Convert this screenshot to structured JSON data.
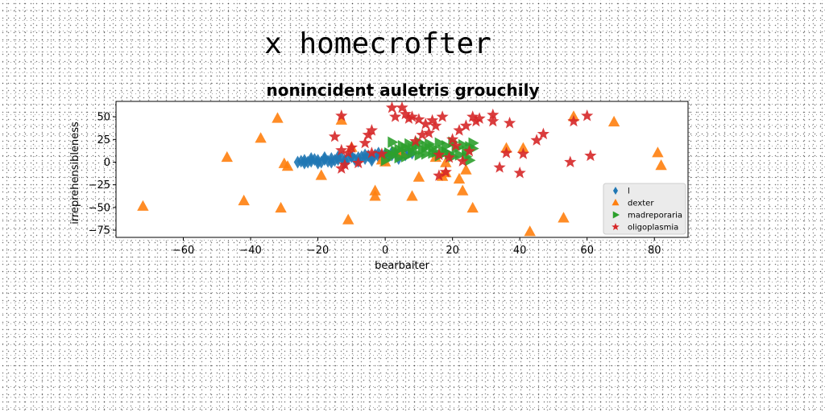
{
  "page": {
    "suptitle": "x homecrofter"
  },
  "chart_data": {
    "type": "scatter",
    "title": "nonincident auletris grouchily",
    "xlabel": "bearbaiter",
    "ylabel": "irreprehensibleness",
    "xlim": [
      -80,
      90
    ],
    "ylim": [
      -83,
      67
    ],
    "xticks": [
      -60,
      -40,
      -20,
      0,
      20,
      40,
      60,
      80
    ],
    "yticks": [
      50,
      25,
      0,
      -25,
      -50,
      -75
    ],
    "grid": false,
    "legend_position": "lower right",
    "series": [
      {
        "name": "l",
        "marker": "diamond",
        "color": "#1f77b4",
        "points": [
          [
            -26,
            0
          ],
          [
            -25,
            1
          ],
          [
            -24,
            2
          ],
          [
            -23,
            0
          ],
          [
            -22,
            1
          ],
          [
            -21,
            3
          ],
          [
            -20,
            2
          ],
          [
            -19,
            0
          ],
          [
            -18,
            3
          ],
          [
            -17,
            1
          ],
          [
            -16,
            4
          ],
          [
            -15,
            2
          ],
          [
            -14,
            3
          ],
          [
            -13,
            5
          ],
          [
            -12,
            2
          ],
          [
            -11,
            4
          ],
          [
            -10,
            6
          ],
          [
            -9,
            3
          ],
          [
            -8,
            5
          ],
          [
            -7,
            6
          ],
          [
            -6,
            4
          ],
          [
            -5,
            7
          ],
          [
            -4,
            5
          ],
          [
            -3,
            8
          ],
          [
            -2,
            6
          ],
          [
            -1,
            7
          ],
          [
            0,
            9
          ],
          [
            1,
            7
          ],
          [
            2,
            8
          ],
          [
            3,
            10
          ],
          [
            4,
            9
          ],
          [
            5,
            11
          ],
          [
            6,
            8
          ],
          [
            7,
            12
          ],
          [
            8,
            10
          ],
          [
            -24,
            -1
          ],
          [
            -20,
            -1
          ],
          [
            -16,
            0
          ],
          [
            -12,
            0
          ],
          [
            -8,
            1
          ],
          [
            -4,
            2
          ],
          [
            0,
            3
          ],
          [
            4,
            4
          ],
          [
            -22,
            4
          ],
          [
            -18,
            5
          ],
          [
            -14,
            6
          ],
          [
            -10,
            7
          ],
          [
            -6,
            8
          ],
          [
            -2,
            10
          ],
          [
            2,
            11
          ]
        ]
      },
      {
        "name": "dexter",
        "marker": "triangle-up",
        "color": "#ff7f0e",
        "points": [
          [
            -72,
            -49
          ],
          [
            -47,
            5
          ],
          [
            -42,
            -43
          ],
          [
            -37,
            26
          ],
          [
            -32,
            48
          ],
          [
            -31,
            -51
          ],
          [
            -30,
            -2
          ],
          [
            -29,
            -5
          ],
          [
            -19,
            -15
          ],
          [
            -13,
            46
          ],
          [
            -11,
            -64
          ],
          [
            -10,
            16
          ],
          [
            -3,
            -32
          ],
          [
            -3,
            -38
          ],
          [
            -1,
            2
          ],
          [
            8,
            -38
          ],
          [
            10,
            -17
          ],
          [
            17,
            -16
          ],
          [
            18,
            -12
          ],
          [
            18,
            -1
          ],
          [
            22,
            -19
          ],
          [
            23,
            -32
          ],
          [
            24,
            -9
          ],
          [
            26,
            -51
          ],
          [
            36,
            15
          ],
          [
            41,
            15
          ],
          [
            43,
            -77
          ],
          [
            53,
            -62
          ],
          [
            56,
            50
          ],
          [
            68,
            44
          ],
          [
            81,
            10
          ],
          [
            82,
            -4
          ],
          [
            0,
            0
          ],
          [
            5,
            10
          ],
          [
            15,
            5
          ]
        ]
      },
      {
        "name": "madreporaria",
        "marker": "triangle-right",
        "color": "#2ca02c",
        "points": [
          [
            0,
            2
          ],
          [
            1,
            10
          ],
          [
            2,
            22
          ],
          [
            3,
            12
          ],
          [
            4,
            5
          ],
          [
            5,
            18
          ],
          [
            6,
            15
          ],
          [
            7,
            20
          ],
          [
            8,
            10
          ],
          [
            9,
            18
          ],
          [
            10,
            22
          ],
          [
            11,
            14
          ],
          [
            12,
            9
          ],
          [
            13,
            20
          ],
          [
            14,
            16
          ],
          [
            15,
            11
          ],
          [
            16,
            21
          ],
          [
            17,
            13
          ],
          [
            18,
            18
          ],
          [
            19,
            9
          ],
          [
            20,
            22
          ],
          [
            21,
            15
          ],
          [
            22,
            8
          ],
          [
            23,
            19
          ],
          [
            24,
            12
          ],
          [
            25,
            17
          ],
          [
            25,
            2
          ],
          [
            26,
            21
          ],
          [
            26,
            15
          ],
          [
            24,
            6
          ],
          [
            2,
            7
          ],
          [
            4,
            14
          ],
          [
            6,
            6
          ],
          [
            8,
            15
          ],
          [
            10,
            8
          ],
          [
            12,
            17
          ],
          [
            14,
            10
          ],
          [
            16,
            7
          ],
          [
            18,
            11
          ],
          [
            20,
            6
          ]
        ]
      },
      {
        "name": "oligoplasmia",
        "marker": "star",
        "color": "#d62728",
        "points": [
          [
            -15,
            28
          ],
          [
            -13,
            51
          ],
          [
            -13,
            13
          ],
          [
            -13,
            -7
          ],
          [
            -11,
            10
          ],
          [
            -10,
            16
          ],
          [
            -8,
            -1
          ],
          [
            -5,
            30
          ],
          [
            -4,
            35
          ],
          [
            -4,
            10
          ],
          [
            -1,
            9
          ],
          [
            2,
            60
          ],
          [
            3,
            50
          ],
          [
            5,
            60
          ],
          [
            6,
            53
          ],
          [
            7,
            48
          ],
          [
            8,
            50
          ],
          [
            9,
            23
          ],
          [
            10,
            47
          ],
          [
            11,
            30
          ],
          [
            12,
            42
          ],
          [
            13,
            32
          ],
          [
            14,
            46
          ],
          [
            15,
            40
          ],
          [
            16,
            8
          ],
          [
            16,
            -15
          ],
          [
            17,
            50
          ],
          [
            18,
            -11
          ],
          [
            19,
            5
          ],
          [
            20,
            25
          ],
          [
            21,
            18
          ],
          [
            22,
            35
          ],
          [
            23,
            1
          ],
          [
            24,
            40
          ],
          [
            25,
            12
          ],
          [
            26,
            50
          ],
          [
            27,
            45
          ],
          [
            28,
            48
          ],
          [
            32,
            52
          ],
          [
            32,
            45
          ],
          [
            34,
            -6
          ],
          [
            36,
            10
          ],
          [
            37,
            43
          ],
          [
            40,
            -12
          ],
          [
            41,
            9
          ],
          [
            45,
            24
          ],
          [
            47,
            31
          ],
          [
            55,
            0
          ],
          [
            56,
            45
          ],
          [
            60,
            51
          ],
          [
            61,
            7
          ],
          [
            -6,
            21
          ],
          [
            -12,
            -3
          ]
        ]
      }
    ]
  }
}
